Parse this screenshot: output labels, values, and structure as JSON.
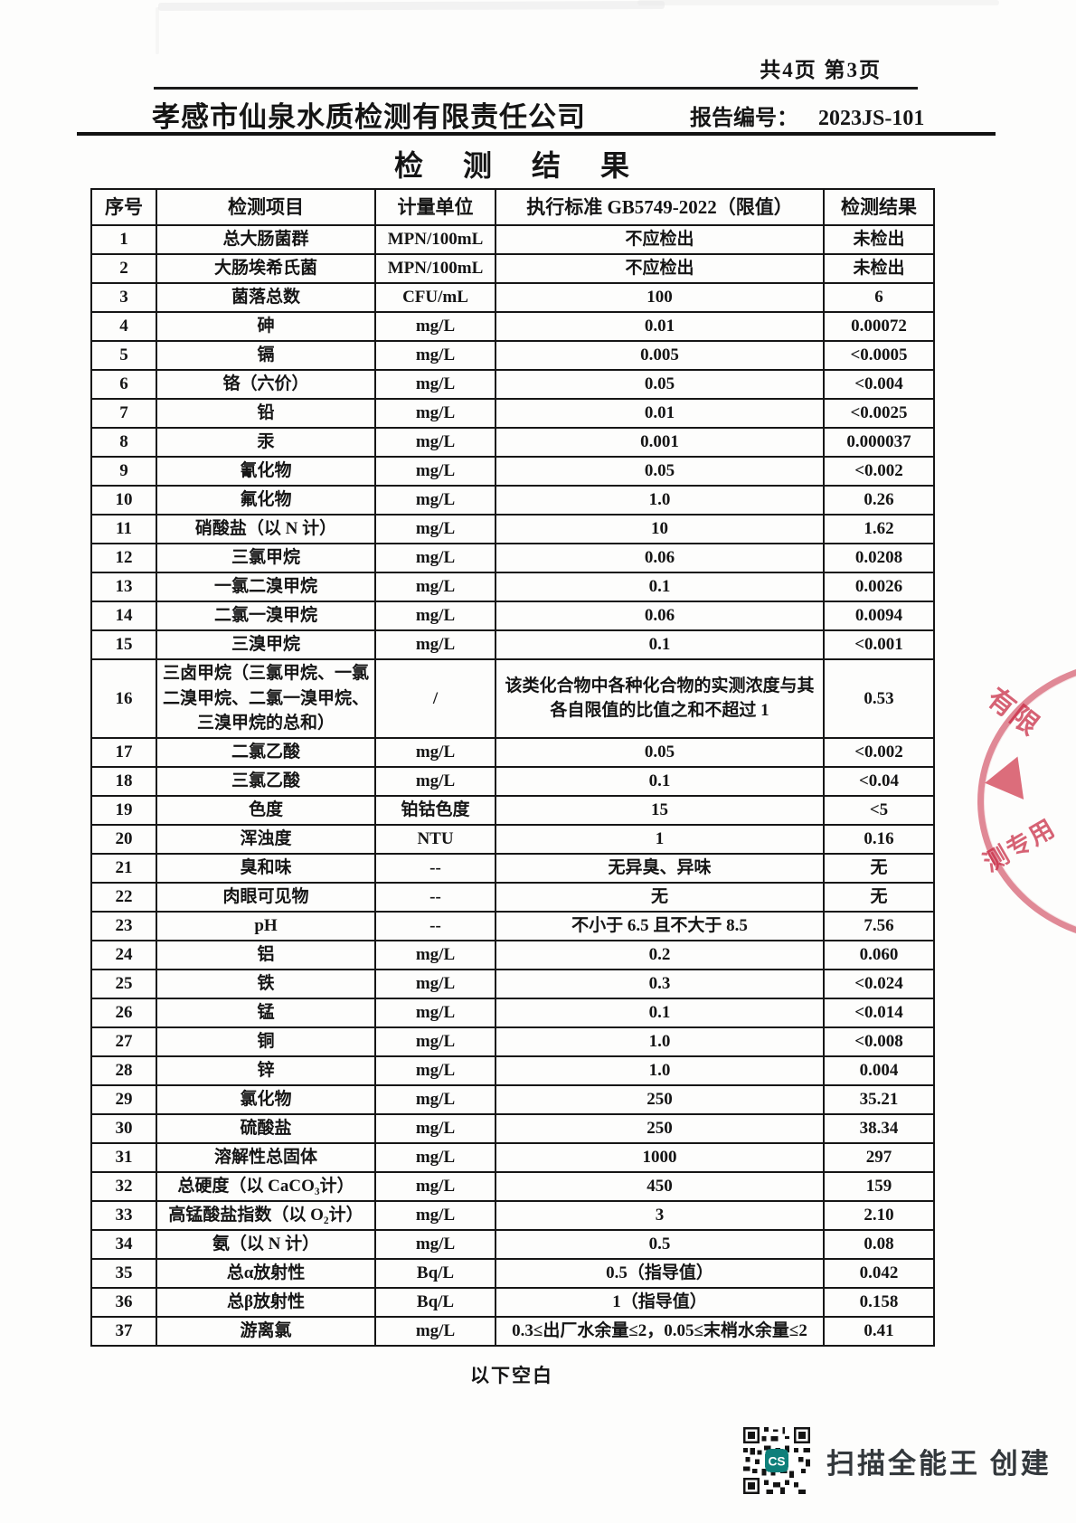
{
  "page": {
    "page_indicator": "共4页 第3页",
    "company_name": "孝感市仙泉水质检测有限责任公司",
    "report_no_label": "报告编号：",
    "report_no": "2023JS-101",
    "title": "检 测 结 果",
    "below_blank": "以下空白",
    "scanner_credit": "扫描全能王 创建"
  },
  "stamp": {
    "fragments": [
      "有限",
      "测专用"
    ]
  },
  "table": {
    "headers": [
      "序号",
      "检测项目",
      "计量单位",
      "执行标准 GB5749-2022（限值）",
      "检测结果"
    ],
    "rows": [
      [
        "1",
        "总大肠菌群",
        "MPN/100mL",
        "不应检出",
        "未检出"
      ],
      [
        "2",
        "大肠埃希氏菌",
        "MPN/100mL",
        "不应检出",
        "未检出"
      ],
      [
        "3",
        "菌落总数",
        "CFU/mL",
        "100",
        "6"
      ],
      [
        "4",
        "砷",
        "mg/L",
        "0.01",
        "0.00072"
      ],
      [
        "5",
        "镉",
        "mg/L",
        "0.005",
        "<0.0005"
      ],
      [
        "6",
        "铬（六价）",
        "mg/L",
        "0.05",
        "<0.004"
      ],
      [
        "7",
        "铅",
        "mg/L",
        "0.01",
        "<0.0025"
      ],
      [
        "8",
        "汞",
        "mg/L",
        "0.001",
        "0.000037"
      ],
      [
        "9",
        "氰化物",
        "mg/L",
        "0.05",
        "<0.002"
      ],
      [
        "10",
        "氟化物",
        "mg/L",
        "1.0",
        "0.26"
      ],
      [
        "11",
        "硝酸盐（以 N 计）",
        "mg/L",
        "10",
        "1.62"
      ],
      [
        "12",
        "三氯甲烷",
        "mg/L",
        "0.06",
        "0.0208"
      ],
      [
        "13",
        "一氯二溴甲烷",
        "mg/L",
        "0.1",
        "0.0026"
      ],
      [
        "14",
        "二氯一溴甲烷",
        "mg/L",
        "0.06",
        "0.0094"
      ],
      [
        "15",
        "三溴甲烷",
        "mg/L",
        "0.1",
        "<0.001"
      ],
      [
        "16",
        "三卤甲烷（三氯甲烷、一氯二溴甲烷、二氯一溴甲烷、三溴甲烷的总和）",
        "/",
        "该类化合物中各种化合物的实测浓度与其各自限值的比值之和不超过 1",
        "0.53"
      ],
      [
        "17",
        "二氯乙酸",
        "mg/L",
        "0.05",
        "<0.002"
      ],
      [
        "18",
        "三氯乙酸",
        "mg/L",
        "0.1",
        "<0.04"
      ],
      [
        "19",
        "色度",
        "铂钴色度",
        "15",
        "<5"
      ],
      [
        "20",
        "浑浊度",
        "NTU",
        "1",
        "0.16"
      ],
      [
        "21",
        "臭和味",
        "--",
        "无异臭、异味",
        "无"
      ],
      [
        "22",
        "肉眼可见物",
        "--",
        "无",
        "无"
      ],
      [
        "23",
        "pH",
        "--",
        "不小于 6.5 且不大于 8.5",
        "7.56"
      ],
      [
        "24",
        "铝",
        "mg/L",
        "0.2",
        "0.060"
      ],
      [
        "25",
        "铁",
        "mg/L",
        "0.3",
        "<0.024"
      ],
      [
        "26",
        "锰",
        "mg/L",
        "0.1",
        "<0.014"
      ],
      [
        "27",
        "铜",
        "mg/L",
        "1.0",
        "<0.008"
      ],
      [
        "28",
        "锌",
        "mg/L",
        "1.0",
        "0.004"
      ],
      [
        "29",
        "氯化物",
        "mg/L",
        "250",
        "35.21"
      ],
      [
        "30",
        "硫酸盐",
        "mg/L",
        "250",
        "38.34"
      ],
      [
        "31",
        "溶解性总固体",
        "mg/L",
        "1000",
        "297"
      ],
      [
        "32",
        "总硬度（以 CaCO₃计）",
        "mg/L",
        "450",
        "159"
      ],
      [
        "33",
        "高锰酸盐指数（以 O₂计）",
        "mg/L",
        "3",
        "2.10"
      ],
      [
        "34",
        "氨（以 N 计）",
        "mg/L",
        "0.5",
        "0.08"
      ],
      [
        "35",
        "总α放射性",
        "Bq/L",
        "0.5（指导值）",
        "0.042"
      ],
      [
        "36",
        "总β放射性",
        "Bq/L",
        "1（指导值）",
        "0.158"
      ],
      [
        "37",
        "游离氯",
        "mg/L",
        "0.3≤出厂水余量≤2，0.05≤末梢水余量≤2",
        "0.41"
      ]
    ]
  }
}
